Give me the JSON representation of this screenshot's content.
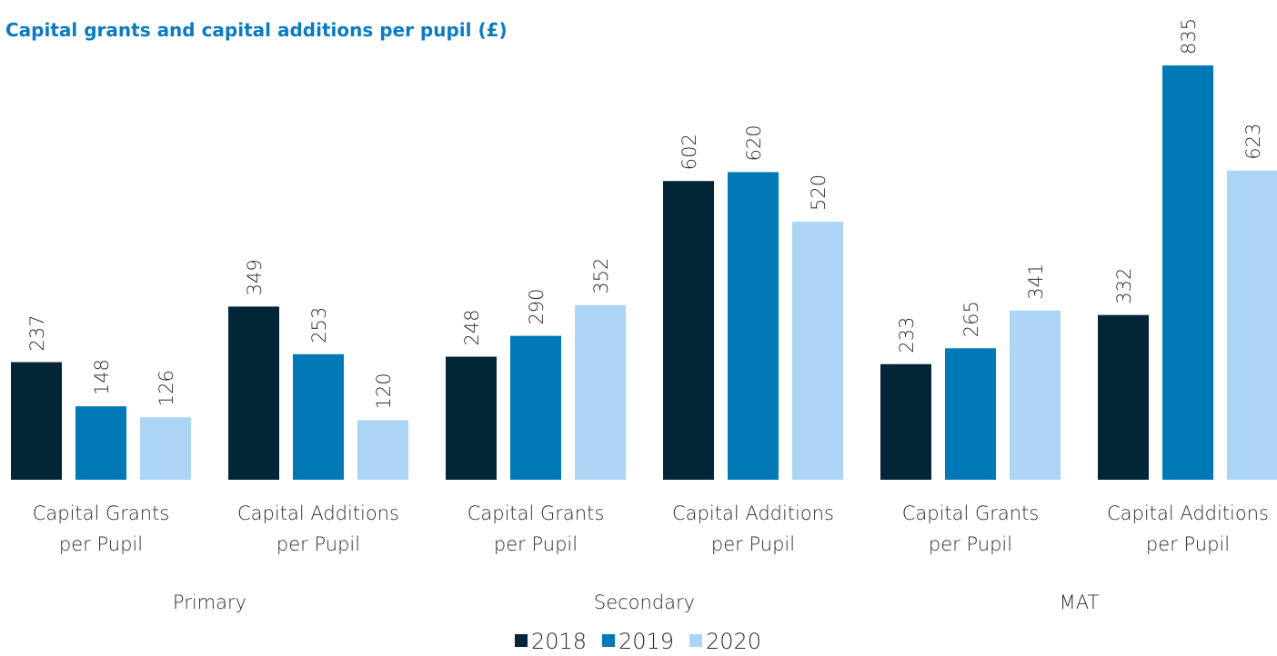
{
  "chart_data": {
    "type": "bar",
    "title": "Capital grants and capital additions per pupil (£)",
    "categories": [
      "Capital Grants per Pupil",
      "Capital Additions per Pupil",
      "Capital Grants per Pupil",
      "Capital Additions per Pupil",
      "Capital Grants per Pupil",
      "Capital Additions per Pupil"
    ],
    "groups": [
      "Primary",
      "Secondary",
      "MAT"
    ],
    "series": [
      {
        "name": "2018",
        "color": "#022538",
        "values": [
          237,
          349,
          248,
          602,
          233,
          332
        ]
      },
      {
        "name": "2019",
        "color": "#0079b6",
        "values": [
          148,
          253,
          290,
          620,
          265,
          835
        ]
      },
      {
        "name": "2020",
        "color": "#acd5f5",
        "values": [
          126,
          120,
          352,
          520,
          341,
          623
        ]
      }
    ],
    "grid": false
  }
}
